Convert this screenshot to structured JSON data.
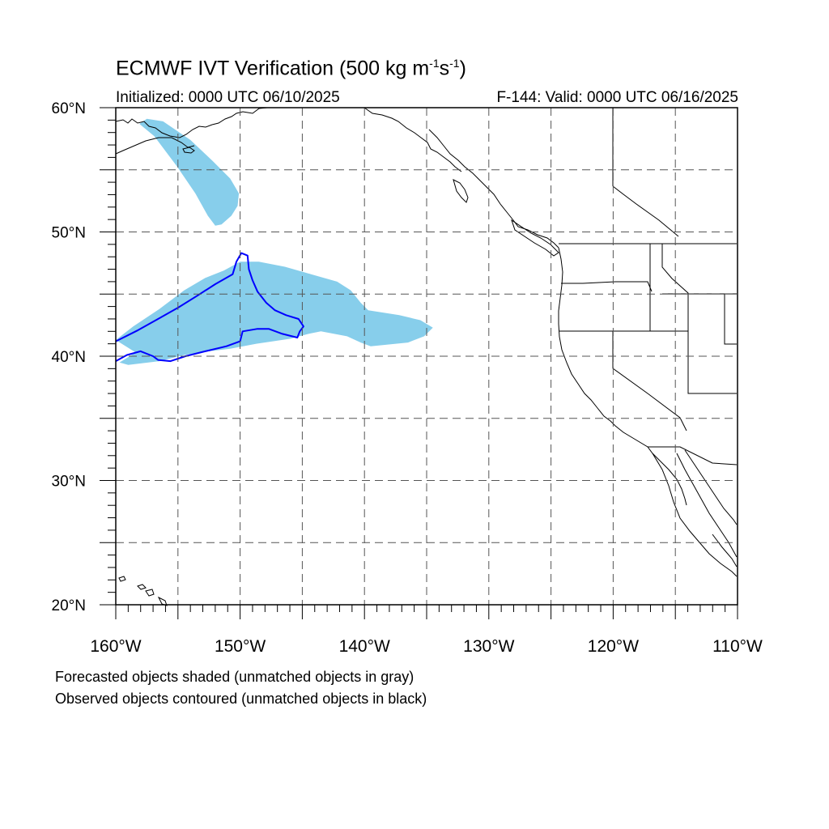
{
  "title": {
    "main": "ECMWF IVT Verification (500 kg m",
    "exp1": "-1",
    "mid": "s",
    "exp2": "-1",
    "close": ")"
  },
  "subtitle": {
    "initialized": "Initialized: 0000 UTC 06/10/2025",
    "valid": "F-144: Valid: 0000 UTC 06/16/2025"
  },
  "map": {
    "projection": "cylindrical equidistant",
    "lon_range": [
      -160,
      -110
    ],
    "lat_range": [
      20,
      60
    ],
    "grid": "dashed every 5 degrees",
    "lat_labels": [
      "60°N",
      "50°N",
      "40°N",
      "30°N",
      "20°N"
    ],
    "lon_labels": [
      "160°W",
      "150°W",
      "140°W",
      "130°W",
      "120°W",
      "110°W"
    ],
    "colors": {
      "forecast_fill": "#87ceeb",
      "observed_contour": "#0000ff",
      "coastline": "#000000",
      "grid": "#555555"
    },
    "forecast_objects": [
      {
        "id": "gulf-of-alaska-plume",
        "points": [
          [
            -157.5,
            59.1
          ],
          [
            -156.2,
            58.9
          ],
          [
            -154.0,
            57.4
          ],
          [
            -152.2,
            55.7
          ],
          [
            -150.8,
            54.3
          ],
          [
            -150.1,
            53.1
          ],
          [
            -150.2,
            52.1
          ],
          [
            -150.7,
            51.3
          ],
          [
            -151.5,
            50.6
          ],
          [
            -152.0,
            50.5
          ],
          [
            -152.6,
            51.3
          ],
          [
            -153.6,
            53.1
          ],
          [
            -155.1,
            55.3
          ],
          [
            -156.9,
            57.7
          ],
          [
            -158.1,
            58.7
          ]
        ]
      },
      {
        "id": "north-pacific-ar",
        "points": [
          [
            -160.0,
            41.3
          ],
          [
            -158.6,
            42.4
          ],
          [
            -156.5,
            43.8
          ],
          [
            -154.5,
            45.3
          ],
          [
            -152.8,
            46.3
          ],
          [
            -151.3,
            46.9
          ],
          [
            -150.0,
            47.6
          ],
          [
            -148.5,
            47.6
          ],
          [
            -146.4,
            47.2
          ],
          [
            -144.3,
            46.6
          ],
          [
            -142.2,
            46.0
          ],
          [
            -141.1,
            45.3
          ],
          [
            -140.3,
            44.3
          ],
          [
            -139.7,
            43.7
          ],
          [
            -137.2,
            43.3
          ],
          [
            -135.5,
            42.9
          ],
          [
            -134.5,
            42.3
          ],
          [
            -135.2,
            41.6
          ],
          [
            -136.5,
            41.1
          ],
          [
            -139.5,
            40.8
          ],
          [
            -140.3,
            41.1
          ],
          [
            -141.4,
            41.6
          ],
          [
            -143.5,
            42.0
          ],
          [
            -144.5,
            41.8
          ],
          [
            -146.0,
            41.4
          ],
          [
            -148.7,
            41.0
          ],
          [
            -150.8,
            40.6
          ],
          [
            -152.5,
            40.4
          ],
          [
            -154.5,
            40.1
          ],
          [
            -156.5,
            39.6
          ],
          [
            -159.0,
            39.3
          ],
          [
            -159.7,
            39.5
          ],
          [
            -158.4,
            40.3
          ]
        ]
      }
    ],
    "observed_objects": [
      {
        "id": "observed-ar",
        "points": [
          [
            -160.0,
            41.2
          ],
          [
            -158.2,
            42.1
          ],
          [
            -156.6,
            43.0
          ],
          [
            -155.0,
            43.9
          ],
          [
            -153.4,
            44.9
          ],
          [
            -152.0,
            45.8
          ],
          [
            -150.6,
            46.6
          ],
          [
            -150.3,
            47.6
          ],
          [
            -149.9,
            48.3
          ],
          [
            -149.4,
            48.1
          ],
          [
            -149.3,
            47.0
          ],
          [
            -149.0,
            46.1
          ],
          [
            -148.6,
            45.2
          ],
          [
            -147.9,
            44.3
          ],
          [
            -147.2,
            43.7
          ],
          [
            -146.3,
            43.3
          ],
          [
            -145.3,
            43.0
          ],
          [
            -144.9,
            42.4
          ],
          [
            -145.2,
            42.0
          ],
          [
            -145.4,
            41.5
          ],
          [
            -146.6,
            41.8
          ],
          [
            -147.7,
            42.2
          ],
          [
            -148.6,
            42.2
          ],
          [
            -149.8,
            42.0
          ],
          [
            -150.0,
            41.2
          ],
          [
            -151.1,
            40.8
          ],
          [
            -152.8,
            40.4
          ],
          [
            -154.4,
            40.0
          ],
          [
            -155.6,
            39.6
          ],
          [
            -156.6,
            39.7
          ],
          [
            -157.0,
            40.0
          ],
          [
            -158.0,
            40.4
          ],
          [
            -159.1,
            40.1
          ],
          [
            -160.0,
            39.6
          ]
        ]
      }
    ]
  },
  "captions": {
    "line1": "Forecasted objects shaded (unmatched objects in gray)",
    "line2": "Observed objects contoured (unmatched objects in black)"
  }
}
